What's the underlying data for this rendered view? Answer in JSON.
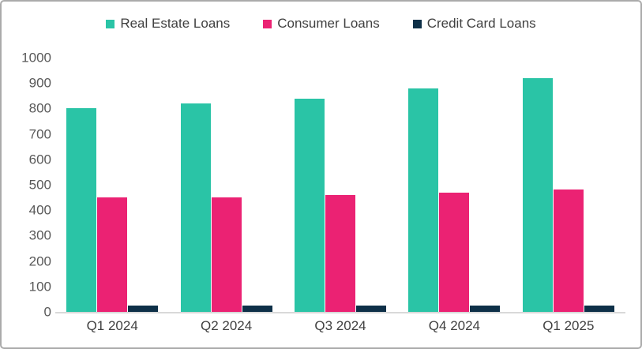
{
  "frame": {
    "background_color": "#ffffff",
    "border_color": "#ababab"
  },
  "chart_data": {
    "type": "bar",
    "title": "",
    "xlabel": "",
    "ylabel": "",
    "categories": [
      "Q1 2024",
      "Q2 2024",
      "Q3 2024",
      "Q4 2024",
      "Q1 2025"
    ],
    "series": [
      {
        "name": "Real Estate Loans",
        "color": "#2ac4a6",
        "values": [
          800,
          820,
          840,
          880,
          920
        ]
      },
      {
        "name": "Consumer Loans",
        "color": "#eb2273",
        "values": [
          450,
          450,
          460,
          470,
          480
        ]
      },
      {
        "name": "Credit Card Loans",
        "color": "#0e3048",
        "values": [
          25,
          25,
          25,
          25,
          25
        ]
      }
    ],
    "ylim": [
      0,
      1000
    ],
    "ytick_step": 100,
    "ytick_labels": [
      "1000",
      "900",
      "800",
      "700",
      "600",
      "500",
      "400",
      "300",
      "200",
      "100",
      "0"
    ],
    "grid": false,
    "legend_position": "top",
    "axis_line_color": "#d9d9d9",
    "tick_label_color": "#595959",
    "category_label_color": "#404040",
    "legend_text_color": "#404040"
  }
}
